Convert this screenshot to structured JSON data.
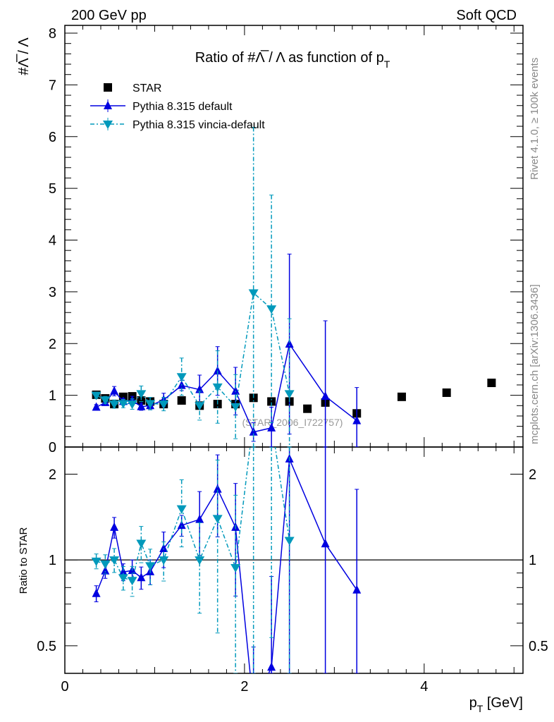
{
  "header": {
    "left": "200 GeV pp",
    "right": "Soft QCD"
  },
  "side": {
    "rivet": "Rivet 4.1.0, ≥ 100k events",
    "mcplots": "mcplots.cern.ch [arXiv:1306.3436]"
  },
  "watermark": "(STAR_2006_I722757)",
  "colors": {
    "star": "#000000",
    "default": "#0000e0",
    "vincia": "#0099bb"
  },
  "chart_data": {
    "type": "scatter",
    "title": "Ratio of #Λ̅ / Λ as function of p",
    "title_sub": "T",
    "xlabel": "p",
    "xlabel_sub": "T",
    "xlabel_unit": " [GeV]",
    "ylabel": "#Λ̅ / Λ",
    "ratio_ylabel": "Ratio to STAR",
    "xlim": [
      0,
      5.1
    ],
    "ylim": [
      0,
      8.15
    ],
    "ratio_ylim": [
      0.4,
      2.49
    ],
    "ratio_scale": "log",
    "xticks": [
      "0",
      "2",
      "4"
    ],
    "yticks": [
      "0",
      "1",
      "2",
      "3",
      "4",
      "5",
      "6",
      "7",
      "8"
    ],
    "ratio_yticks": [
      "0.5",
      "1",
      "2"
    ],
    "legend_position": "top-left",
    "series": [
      {
        "name": "STAR",
        "marker": "square",
        "x": [
          0.35,
          0.45,
          0.55,
          0.65,
          0.75,
          0.85,
          0.95,
          1.1,
          1.3,
          1.5,
          1.7,
          1.9,
          2.1,
          2.3,
          2.5,
          2.7,
          2.9,
          3.25,
          3.75,
          4.25,
          4.75
        ],
        "y": [
          1.01,
          0.94,
          0.83,
          0.97,
          0.98,
          0.9,
          0.88,
          0.83,
          0.9,
          0.8,
          0.83,
          0.83,
          0.95,
          0.88,
          0.88,
          0.74,
          0.86,
          0.65,
          0.97,
          1.05,
          1.24
        ],
        "yerr": [
          0.03,
          0.03,
          0.03,
          0.03,
          0.03,
          0.03,
          0.03,
          0.03,
          0.03,
          0.03,
          0.03,
          0.03,
          0.04,
          0.04,
          0.04,
          0.04,
          0.05,
          0.05,
          0.05,
          0.06,
          0.07
        ]
      },
      {
        "name": "Pythia 8.315 default",
        "marker": "triangle-up",
        "line": "solid",
        "x": [
          0.35,
          0.45,
          0.55,
          0.65,
          0.75,
          0.85,
          0.95,
          1.1,
          1.3,
          1.5,
          1.7,
          1.9,
          2.1,
          2.3,
          2.5,
          2.9,
          3.25
        ],
        "y": [
          0.77,
          0.86,
          1.08,
          0.88,
          0.9,
          0.78,
          0.8,
          0.91,
          1.19,
          1.11,
          1.47,
          1.08,
          0.29,
          0.37,
          1.99,
          0.98,
          0.51
        ],
        "yerr": [
          0.05,
          0.05,
          0.09,
          0.06,
          0.08,
          0.07,
          0.08,
          0.13,
          0.1,
          0.28,
          0.47,
          0.46,
          0.18,
          0.4,
          1.74,
          1.46,
          0.64
        ]
      },
      {
        "name": "Pythia 8.315 vincia-default",
        "marker": "triangle-down",
        "line": "dashdot",
        "x": [
          0.35,
          0.45,
          0.55,
          0.65,
          0.75,
          0.85,
          0.95,
          1.1,
          1.3,
          1.5,
          1.7,
          1.9,
          2.1,
          2.3,
          2.5
        ],
        "y": [
          1.0,
          0.91,
          0.83,
          0.84,
          0.83,
          1.03,
          0.84,
          0.83,
          1.36,
          0.8,
          1.16,
          0.78,
          2.98,
          2.67,
          1.03
        ],
        "yerr": [
          0.06,
          0.07,
          0.08,
          0.08,
          0.1,
          0.15,
          0.12,
          0.13,
          0.36,
          0.28,
          0.7,
          0.62,
          3.2,
          2.2,
          1.45
        ]
      }
    ]
  }
}
